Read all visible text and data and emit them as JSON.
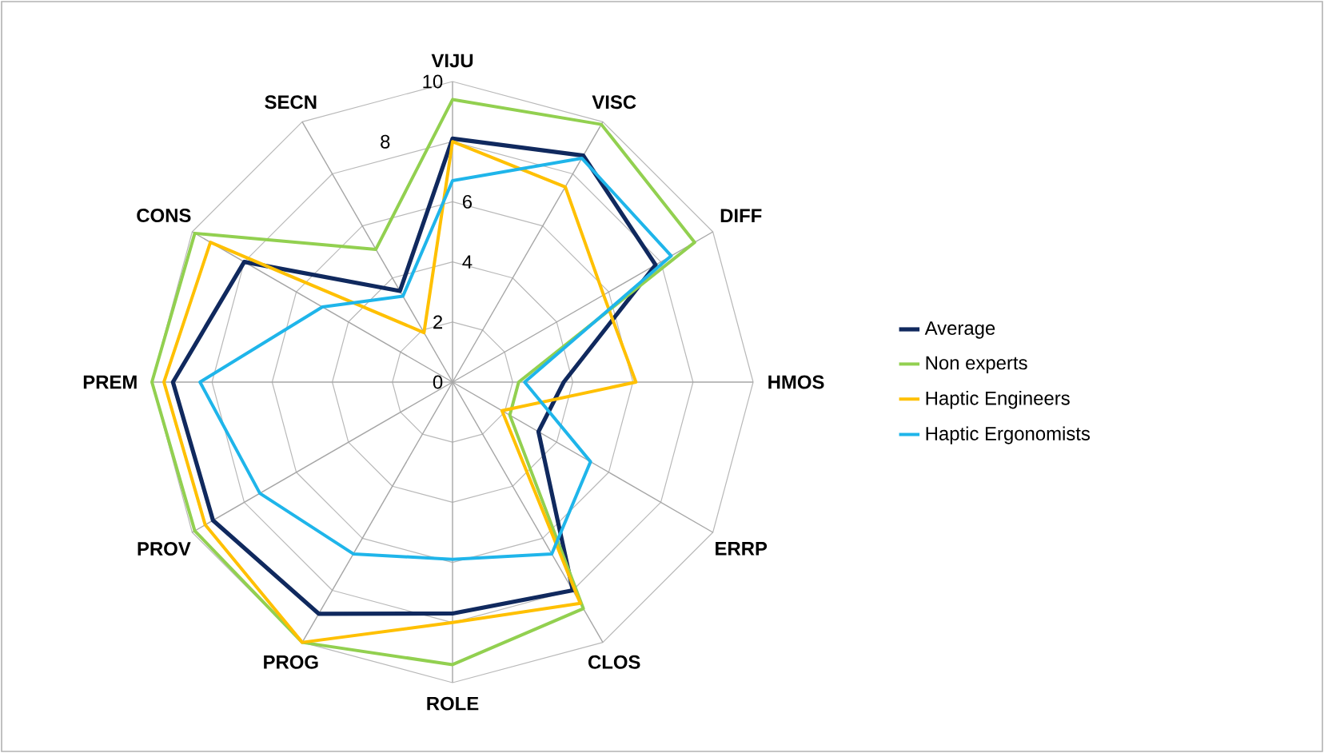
{
  "chart_data": {
    "type": "radar",
    "categories": [
      "VIJU",
      "VISC",
      "DIFF",
      "HMOS",
      "ERRP",
      "CLOS",
      "ROLE",
      "PROG",
      "PROV",
      "PREM",
      "CONS",
      "SECN"
    ],
    "ylim": [
      0,
      10
    ],
    "yticks": [
      0,
      2,
      4,
      6,
      8,
      10
    ],
    "grid": true,
    "legend": "right",
    "marker": "none",
    "series": [
      {
        "name": "Average",
        "color": "#10295e",
        "values": [
          8.1,
          8.7,
          7.8,
          3.7,
          3.3,
          8.0,
          7.7,
          8.9,
          9.2,
          9.3,
          8.0,
          3.5
        ]
      },
      {
        "name": "Non experts",
        "color": "#92d050",
        "values": [
          9.4,
          9.9,
          9.3,
          2.2,
          2.2,
          8.7,
          9.4,
          10.0,
          9.9,
          10.0,
          9.9,
          5.1
        ]
      },
      {
        "name": "Haptic Engineers",
        "color": "#ffc000",
        "values": [
          8.0,
          7.5,
          5.8,
          6.1,
          1.9,
          8.5,
          8.0,
          10.0,
          9.5,
          9.6,
          9.3,
          1.9
        ]
      },
      {
        "name": "Haptic Ergonomists",
        "color": "#1fb5ea",
        "values": [
          6.7,
          8.6,
          8.4,
          2.4,
          5.3,
          6.6,
          5.9,
          6.6,
          7.4,
          8.4,
          5.0,
          3.3
        ]
      }
    ]
  }
}
